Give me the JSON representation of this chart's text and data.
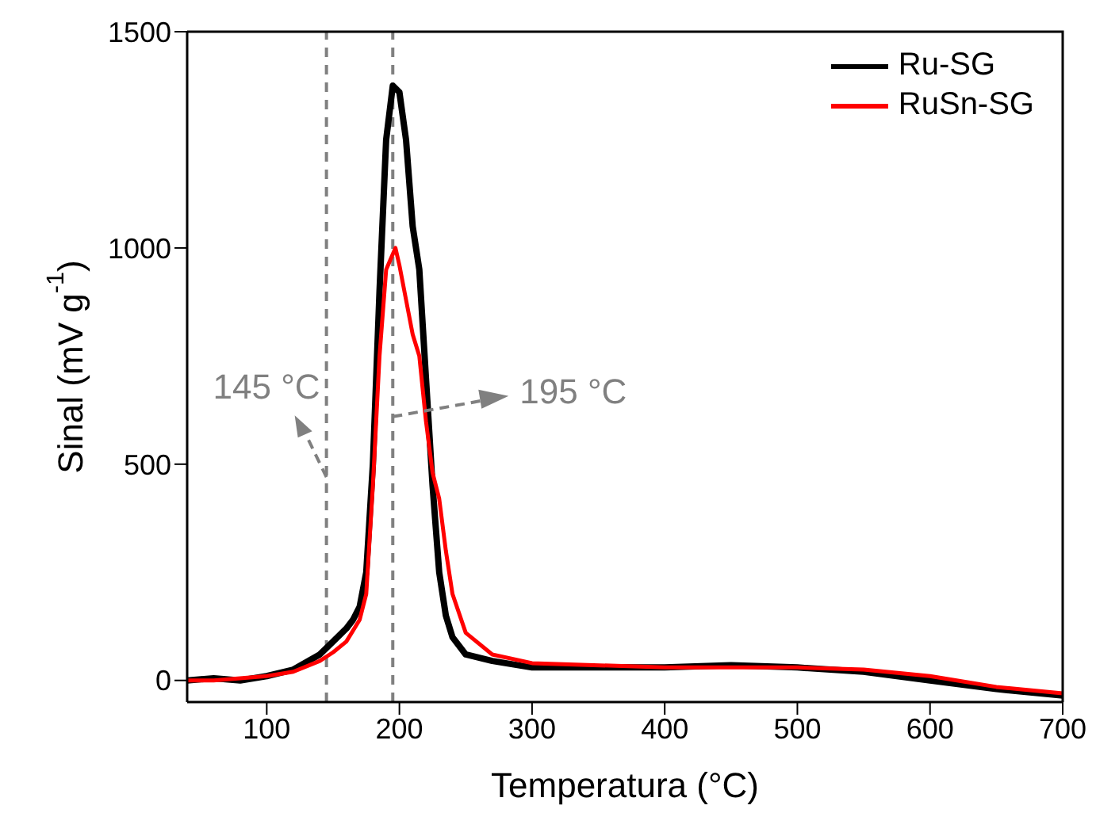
{
  "chart_data": {
    "type": "line",
    "xlabel": "Temperatura (°C)",
    "ylabel": "Sinal (mV g$^{-1}$)",
    "xlim": [
      40,
      700
    ],
    "xticks": [
      100,
      200,
      300,
      400,
      500,
      600,
      700
    ],
    "ylim": [
      -50,
      1500
    ],
    "yticks": [
      0,
      500,
      1000,
      1500
    ],
    "grid": false,
    "legend": "top right",
    "marker": "none",
    "line_style": "solid",
    "ref_lines": [
      {
        "axis": "x",
        "value": 145,
        "color": "#808080",
        "line_style": "dashed"
      },
      {
        "axis": "x",
        "value": 195,
        "color": "#808080",
        "line_style": "dashed"
      }
    ],
    "annotations": [
      {
        "text": "145 °C",
        "x": 145,
        "y": 470
      },
      {
        "text": "195 °C",
        "x": 195,
        "y": 610
      }
    ],
    "series": [
      {
        "name": "Ru-SG",
        "color": "#000000",
        "x": [
          40,
          60,
          80,
          100,
          120,
          140,
          150,
          160,
          165,
          170,
          175,
          180,
          185,
          190,
          195,
          200,
          205,
          210,
          215,
          220,
          225,
          230,
          235,
          240,
          250,
          270,
          300,
          400,
          450,
          500,
          550,
          600,
          650,
          700
        ],
        "values": [
          0,
          5,
          0,
          10,
          25,
          60,
          90,
          120,
          140,
          170,
          250,
          500,
          900,
          1250,
          1375,
          1360,
          1250,
          1050,
          950,
          700,
          450,
          250,
          150,
          100,
          60,
          45,
          30,
          30,
          35,
          30,
          20,
          0,
          -20,
          -35
        ]
      },
      {
        "name": "RuSn-SG",
        "color": "#ff0000",
        "x": [
          40,
          60,
          80,
          100,
          120,
          140,
          150,
          160,
          170,
          175,
          180,
          185,
          190,
          197,
          200,
          205,
          210,
          215,
          220,
          225,
          230,
          235,
          240,
          250,
          270,
          300,
          400,
          500,
          550,
          600,
          650,
          700
        ],
        "values": [
          0,
          0,
          5,
          10,
          20,
          45,
          65,
          90,
          140,
          200,
          450,
          750,
          950,
          1000,
          960,
          880,
          800,
          750,
          600,
          480,
          420,
          300,
          200,
          110,
          60,
          40,
          30,
          30,
          25,
          10,
          -15,
          -30
        ]
      }
    ]
  }
}
